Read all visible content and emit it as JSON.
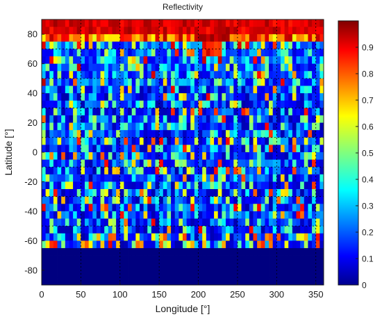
{
  "chart_data": {
    "type": "heatmap",
    "title": "Reflectivity",
    "xlabel": "Longitude [°]",
    "ylabel": "Latitude [°]",
    "xlim": [
      0,
      360
    ],
    "ylim": [
      -90,
      90
    ],
    "x_ticks": [
      "0",
      "50",
      "100",
      "150",
      "200",
      "250",
      "300",
      "350"
    ],
    "y_ticks": [
      "80",
      "60",
      "40",
      "20",
      "0",
      "-20",
      "-40",
      "-60",
      "-80"
    ],
    "colorbar": {
      "colormap": "jet",
      "range": [
        0,
        1
      ],
      "ticks": [
        "0.9",
        "0.8",
        "0.7",
        "0.6",
        "0.5",
        "0.4",
        "0.3",
        "0.2",
        "0.1",
        "0"
      ]
    },
    "grid": true,
    "grid_style": "dotted",
    "grid_lines_lat": [
      70,
      50,
      30,
      10,
      -10,
      -30,
      -50
    ]
  },
  "colors": {
    "jet_low": "#00008f",
    "jet_mid": "#7fff7f",
    "jet_high": "#800000",
    "axis": "#1a1a1a",
    "grid": "#000000"
  }
}
